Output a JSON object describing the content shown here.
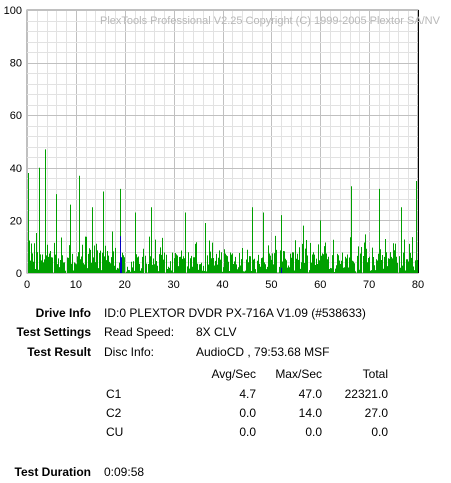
{
  "chart_data": {
    "type": "bar",
    "watermark": "PlexTools Professional V2.25 Copyright (C) 1999-2005 Plextor SA/NV",
    "x_ticks": [
      "0",
      "10",
      "20",
      "30",
      "40",
      "50",
      "60",
      "70",
      "80"
    ],
    "y_ticks": [
      "0",
      "20",
      "40",
      "60",
      "80",
      "100"
    ],
    "xlim": [
      0,
      80
    ],
    "ylim": [
      0,
      100
    ],
    "grid": true,
    "series": [
      {
        "name": "C1",
        "color": "#00a000",
        "avg": 4.7,
        "max": 47.0
      },
      {
        "name": "C2",
        "color": "#0000c0",
        "avg": 0.0,
        "max": 14.0
      }
    ],
    "peaks": [
      {
        "x": 0.2,
        "y": 38
      },
      {
        "x": 2.5,
        "y": 40
      },
      {
        "x": 3.6,
        "y": 47
      },
      {
        "x": 6.0,
        "y": 30
      },
      {
        "x": 8.8,
        "y": 26
      },
      {
        "x": 10.7,
        "y": 37
      },
      {
        "x": 13.2,
        "y": 25
      },
      {
        "x": 15.5,
        "y": 31
      },
      {
        "x": 19.0,
        "y": 32
      },
      {
        "x": 22.0,
        "y": 23
      },
      {
        "x": 25.4,
        "y": 25
      },
      {
        "x": 32.3,
        "y": 23
      },
      {
        "x": 36.5,
        "y": 19
      },
      {
        "x": 46.0,
        "y": 25
      },
      {
        "x": 48.3,
        "y": 23
      },
      {
        "x": 52.0,
        "y": 22
      },
      {
        "x": 56.5,
        "y": 18
      },
      {
        "x": 60.0,
        "y": 20
      },
      {
        "x": 66.3,
        "y": 33
      },
      {
        "x": 72.0,
        "y": 32
      },
      {
        "x": 76.5,
        "y": 25
      },
      {
        "x": 79.5,
        "y": 35
      }
    ],
    "end_marker_x": 80
  },
  "drive_info": {
    "label": "Drive Info",
    "value": "ID:0 PLEXTOR DVDR PX-716A V1.09 (#538633)"
  },
  "test_settings": {
    "label": "Test Settings",
    "key": "Read Speed:",
    "value": "8X CLV"
  },
  "test_result": {
    "label": "Test Result",
    "key": "Disc Info:",
    "value": "AudioCD , 79:53.68 MSF"
  },
  "table": {
    "headers": [
      "Avg/Sec",
      "Max/Sec",
      "Total"
    ],
    "rows": [
      {
        "name": "C1",
        "avg": "4.7",
        "max": "47.0",
        "total": "22321.0"
      },
      {
        "name": "C2",
        "avg": "0.0",
        "max": "14.0",
        "total": "27.0"
      },
      {
        "name": "CU",
        "avg": "0.0",
        "max": "0.0",
        "total": "0.0"
      }
    ]
  },
  "test_duration": {
    "label": "Test Duration",
    "value": "0:09:58"
  }
}
